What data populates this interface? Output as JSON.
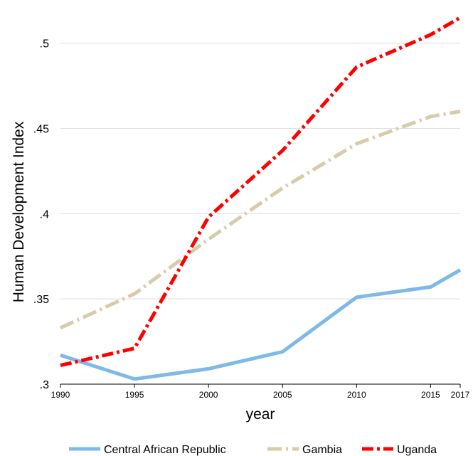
{
  "chart_data": {
    "type": "line",
    "title": "",
    "xlabel": "year",
    "ylabel": "Human Development Index",
    "x": [
      1990,
      1995,
      2000,
      2005,
      2010,
      2015,
      2017
    ],
    "x_ticks": [
      "1990",
      "1995",
      "2000",
      "2005",
      "2010",
      "2015",
      "2017"
    ],
    "y_ticks": [
      ".3",
      ".35",
      ".4",
      ".45",
      ".5"
    ],
    "y_tick_values": [
      0.3,
      0.35,
      0.4,
      0.45,
      0.5
    ],
    "ylim": [
      0.3,
      0.517
    ],
    "xlim": [
      1990,
      2017
    ],
    "grid": "horizontal",
    "legend_position": "bottom",
    "series": [
      {
        "name": "Central African Republic",
        "color": "#7fb9e6",
        "dash": "solid",
        "values": [
          0.317,
          0.303,
          0.309,
          0.319,
          0.351,
          0.357,
          0.367
        ]
      },
      {
        "name": "Gambia",
        "color": "#d7cca9",
        "dash": "dash-dot",
        "values": [
          0.333,
          0.353,
          0.385,
          0.415,
          0.441,
          0.457,
          0.46
        ]
      },
      {
        "name": "Uganda",
        "color": "#ff0000",
        "dash": "dash-dot",
        "values": [
          0.311,
          0.321,
          0.398,
          0.437,
          0.486,
          0.505,
          0.515
        ]
      }
    ]
  }
}
